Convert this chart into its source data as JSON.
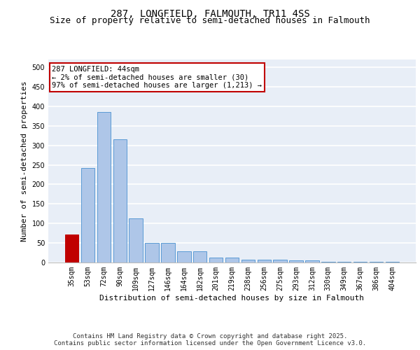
{
  "title_line1": "287, LONGFIELD, FALMOUTH, TR11 4SS",
  "title_line2": "Size of property relative to semi-detached houses in Falmouth",
  "xlabel": "Distribution of semi-detached houses by size in Falmouth",
  "ylabel": "Number of semi-detached properties",
  "categories": [
    "35sqm",
    "53sqm",
    "72sqm",
    "90sqm",
    "109sqm",
    "127sqm",
    "146sqm",
    "164sqm",
    "182sqm",
    "201sqm",
    "219sqm",
    "238sqm",
    "256sqm",
    "275sqm",
    "293sqm",
    "312sqm",
    "330sqm",
    "349sqm",
    "367sqm",
    "386sqm",
    "404sqm"
  ],
  "values": [
    72,
    242,
    385,
    315,
    113,
    50,
    50,
    28,
    28,
    13,
    13,
    8,
    8,
    8,
    5,
    5,
    2,
    2,
    2,
    2,
    2
  ],
  "bar_color": "#aec6e8",
  "bar_edge_color": "#5b9bd5",
  "highlight_bar_index": 0,
  "highlight_color": "#c00000",
  "annotation_box_text": "287 LONGFIELD: 44sqm\n← 2% of semi-detached houses are smaller (30)\n97% of semi-detached houses are larger (1,213) →",
  "annotation_box_color": "#c00000",
  "ylim": [
    0,
    520
  ],
  "yticks": [
    0,
    50,
    100,
    150,
    200,
    250,
    300,
    350,
    400,
    450,
    500
  ],
  "background_color": "#e8eef7",
  "grid_color": "#ffffff",
  "footer_line1": "Contains HM Land Registry data © Crown copyright and database right 2025.",
  "footer_line2": "Contains public sector information licensed under the Open Government Licence v3.0.",
  "title_fontsize": 10,
  "subtitle_fontsize": 9,
  "axis_label_fontsize": 8,
  "tick_fontsize": 7,
  "annotation_fontsize": 7.5,
  "footer_fontsize": 6.5
}
